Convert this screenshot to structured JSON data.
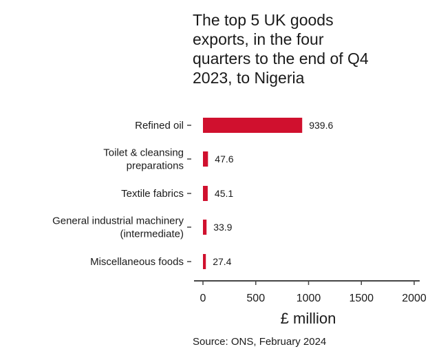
{
  "chart_data": {
    "type": "bar",
    "orientation": "horizontal",
    "title_lines": [
      "The top 5 UK goods",
      "exports, in the four",
      "quarters to the end of Q4",
      "2023, to Nigeria"
    ],
    "categories": [
      [
        "Refined oil"
      ],
      [
        "Toilet & cleansing",
        "preparations"
      ],
      [
        "Textile fabrics"
      ],
      [
        "General industrial machinery",
        "(intermediate)"
      ],
      [
        "Miscellaneous foods"
      ]
    ],
    "values": [
      939.6,
      47.6,
      45.1,
      33.9,
      27.4
    ],
    "value_labels": [
      "939.6",
      "47.6",
      "45.1",
      "33.9",
      "27.4"
    ],
    "xlabel": "£ million",
    "xlim": [
      0,
      2000
    ],
    "xticks": [
      "0",
      "500",
      "1000",
      "1500",
      "2000"
    ],
    "xtick_values": [
      0,
      500,
      1000,
      1500,
      2000
    ],
    "source": "Source: ONS, February 2024",
    "bar_color": "#d0102e",
    "axis_color": "#444444",
    "grid": false,
    "legend": "none"
  }
}
